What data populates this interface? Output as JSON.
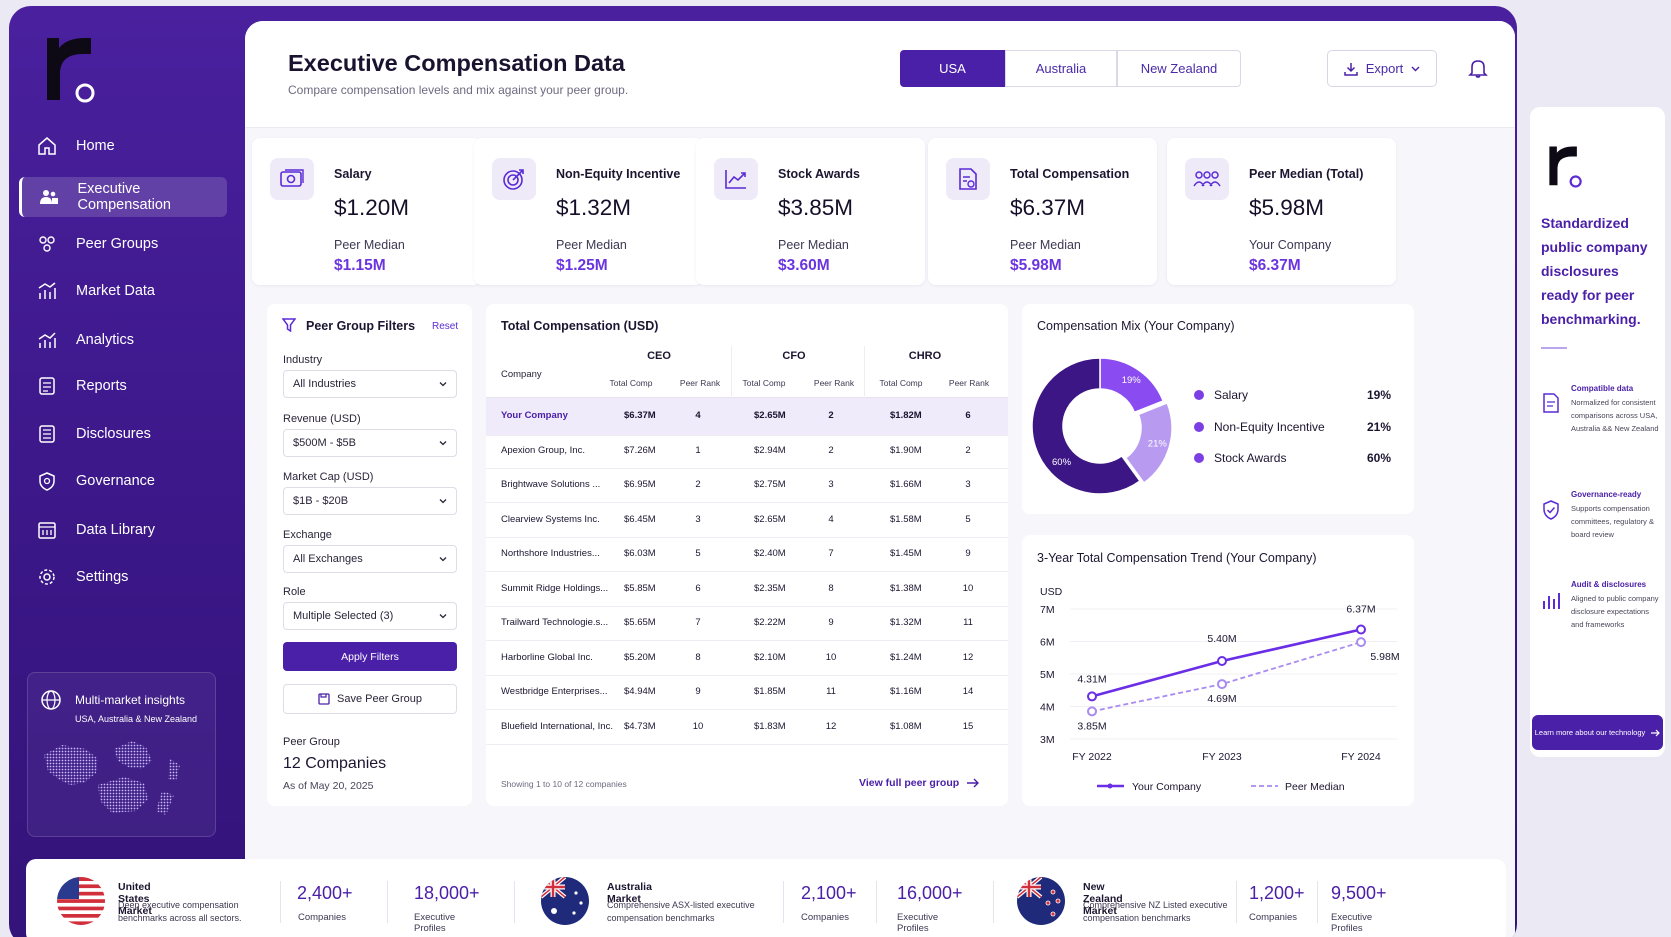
{
  "brand": {
    "name": "r"
  },
  "sidebar": {
    "items": [
      {
        "label": "Home",
        "icon": "home-icon"
      },
      {
        "label": "Executive Compensation",
        "icon": "users-icon",
        "active": true
      },
      {
        "label": "Peer Groups",
        "icon": "peer-groups-icon"
      },
      {
        "label": "Market Data",
        "icon": "bar-chart-icon"
      },
      {
        "label": "Analytics",
        "icon": "analytics-icon"
      },
      {
        "label": "Reports",
        "icon": "reports-icon"
      },
      {
        "label": "Disclosures",
        "icon": "disclosures-icon"
      },
      {
        "label": "Governance",
        "icon": "shield-icon"
      },
      {
        "label": "Data Library",
        "icon": "library-icon"
      },
      {
        "label": "Settings",
        "icon": "gear-icon"
      }
    ],
    "insight": {
      "title": "Multi-market insights",
      "subtitle": "USA, Australia & New Zealand"
    }
  },
  "header": {
    "title": "Executive Compensation Data",
    "subtitle": "Compare compensation levels and mix against your peer group.",
    "tabs": [
      {
        "label": "USA",
        "active": true
      },
      {
        "label": "Australia"
      },
      {
        "label": "New Zealand"
      }
    ],
    "export_label": "Export"
  },
  "kpis": [
    {
      "label": "Salary",
      "value": "$1.20M",
      "sub_label": "Peer Median",
      "sub_value": "$1.15M",
      "icon": "cash-icon"
    },
    {
      "label": "Non-Equity Incentive",
      "value": "$1.32M",
      "sub_label": "Peer Median",
      "sub_value": "$1.25M",
      "icon": "target-icon"
    },
    {
      "label": "Stock Awards",
      "value": "$3.85M",
      "sub_label": "Peer Median",
      "sub_value": "$3.60M",
      "icon": "trend-icon"
    },
    {
      "label": "Total Compensation",
      "value": "$6.37M",
      "sub_label": "Peer Median",
      "sub_value": "$5.98M",
      "icon": "document-icon"
    },
    {
      "label": "Peer  Median (Total)",
      "value": "$5.98M",
      "sub_label": "Your Company",
      "sub_value": "$6.37M",
      "icon": "group-icon"
    }
  ],
  "filters": {
    "title": "Peer Group Filters",
    "reset_label": "Reset",
    "fields": [
      {
        "label": "Industry",
        "value": "All Industries"
      },
      {
        "label": "Revenue (USD)",
        "value": "$500M - $5B"
      },
      {
        "label": "Market Cap (USD)",
        "value": "$1B - $20B"
      },
      {
        "label": "Exchange",
        "value": "All Exchanges"
      },
      {
        "label": "Role",
        "value": "Multiple Selected (3)"
      }
    ],
    "apply_label": "Apply Filters",
    "save_label": "Save Peer Group",
    "peer_group_label": "Peer Group",
    "peer_group_value": "12 Companies",
    "peer_group_date": "As of May 20, 2025"
  },
  "table": {
    "title": "Total Compensation (USD)",
    "company_header": "Company",
    "groups": [
      "CEO",
      "CFO",
      "CHRO"
    ],
    "sub_headers": [
      "Total Comp",
      "Peer Rank"
    ],
    "rows": [
      {
        "company": "Your Company",
        "cells": [
          "$6.37M",
          "4",
          "$2.65M",
          "2",
          "$1.82M",
          "6"
        ],
        "highlight": true
      },
      {
        "company": "Apexion Group, Inc.",
        "cells": [
          "$7.26M",
          "1",
          "$2.94M",
          "2",
          "$1.90M",
          "2"
        ]
      },
      {
        "company": "Brightwave Solutions ...",
        "cells": [
          "$6.95M",
          "2",
          "$2.75M",
          "3",
          "$1.66M",
          "3"
        ]
      },
      {
        "company": "Clearview Systems Inc.",
        "cells": [
          "$6.45M",
          "3",
          "$2.65M",
          "4",
          "$1.58M",
          "5"
        ]
      },
      {
        "company": "Northshore Industries...",
        "cells": [
          "$6.03M",
          "5",
          "$2.40M",
          "7",
          "$1.45M",
          "9"
        ]
      },
      {
        "company": "Summit Ridge Holdings...",
        "cells": [
          "$5.85M",
          "6",
          "$2.35M",
          "8",
          "$1.38M",
          "10"
        ]
      },
      {
        "company": "Trailward Technologie.s...",
        "cells": [
          "$5.65M",
          "7",
          "$2.22M",
          "9",
          "$1.32M",
          "11"
        ]
      },
      {
        "company": "Harborline Global Inc.",
        "cells": [
          "$5.20M",
          "8",
          "$2.10M",
          "10",
          "$1.24M",
          "12"
        ]
      },
      {
        "company": "Westbridge Enterprises...",
        "cells": [
          "$4.94M",
          "9",
          "$1.85M",
          "11",
          "$1.16M",
          "14"
        ]
      },
      {
        "company": "Bluefield International, Inc.",
        "cells": [
          "$4.73M",
          "10",
          "$1.83M",
          "12",
          "$1.08M",
          "15"
        ]
      }
    ],
    "footer": "Showing 1 to 10 of 12 companies",
    "link_label": "View full peer group"
  },
  "chart_data": [
    {
      "type": "pie",
      "title": "Compensation Mix (Your Company)",
      "categories": [
        "Salary",
        "Non-Equity Incentive",
        "Stock Awards"
      ],
      "values": [
        19,
        21,
        60
      ],
      "labels": [
        "19%",
        "21%",
        "60%"
      ],
      "colors": [
        "#8a4cf0",
        "#b89af0",
        "#3d1685"
      ],
      "legend": "right"
    },
    {
      "type": "line",
      "title": "3-Year Total Compensation Trend (Your Company)",
      "ylabel": "USD",
      "x": [
        "FY 2022",
        "FY 2023",
        "FY 2024"
      ],
      "yticks": [
        "3M",
        "4M",
        "5M",
        "6M",
        "7M"
      ],
      "ylim": [
        3,
        7.5
      ],
      "series": [
        {
          "name": "Your Company",
          "values": [
            4.31,
            5.4,
            6.37
          ],
          "labels": [
            "4.31M",
            "5.40M",
            "6.37M"
          ],
          "color": "#6a2ee6",
          "style": "solid"
        },
        {
          "name": "Peer Median",
          "values": [
            3.85,
            4.69,
            5.98
          ],
          "labels": [
            "3.85M",
            "4.69M",
            "5.98M"
          ],
          "color": "#a98af0",
          "style": "dashed"
        }
      ],
      "legend": "bottom"
    }
  ],
  "promo": {
    "headline": "Standardized public company disclosures ready for peer benchmarking.",
    "features": [
      {
        "title": "Compatible data",
        "desc": "Normalized for consistent comparisons across USA, Australia && New Zealand",
        "icon": "document-icon"
      },
      {
        "title": "Governance-ready",
        "desc": "Supports compensation committees, regulatory & board review",
        "icon": "shield-check-icon"
      },
      {
        "title": "Audit & disclosures",
        "desc": "Aligned to public company disclosure expectations and frameworks",
        "icon": "audit-chart-icon"
      }
    ],
    "button_label": "Learn more about our technology"
  },
  "markets": [
    {
      "title": "United States Market",
      "desc": "Deep executive compensation benchmarks across all sectors.",
      "companies": "2,400+",
      "companies_label": "Companies",
      "profiles": "18,000+",
      "profiles_label": "Executive Profiles",
      "flag": "us-flag-icon"
    },
    {
      "title": "Australia Market",
      "desc": "Comprehensive ASX-listed executive compensation benchmarks",
      "companies": "2,100+",
      "companies_label": "Companies",
      "profiles": "16,000+",
      "profiles_label": "Executive Profiles",
      "flag": "au-flag-icon"
    },
    {
      "title": "New Zealand Market",
      "desc": "Comprehensive NZ Listed executive compensation benchmarks",
      "companies": "1,200+",
      "companies_label": "Companies",
      "profiles": "9,500+",
      "profiles_label": "Executive Profiles",
      "flag": "nz-flag-icon"
    }
  ]
}
